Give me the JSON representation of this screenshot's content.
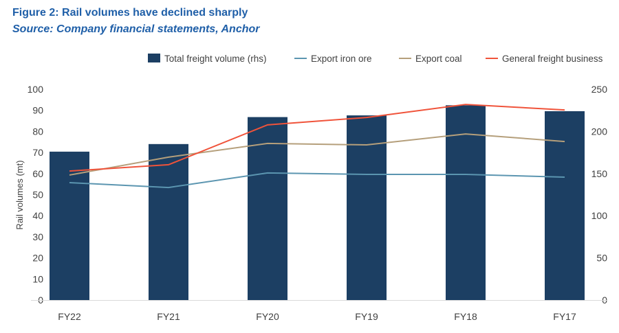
{
  "chart_data": {
    "type": "bar+line",
    "title": "Figure 2: Rail volumes have declined sharply",
    "subtitle": "Source: Company financial statements, Anchor",
    "categories": [
      "FY22",
      "FY21",
      "FY20",
      "FY19",
      "FY18",
      "FY17"
    ],
    "ylabel": "Rail volumes (mt)",
    "ylim": [
      0,
      100
    ],
    "yticks": [
      0,
      10,
      20,
      30,
      40,
      50,
      60,
      70,
      80,
      90,
      100
    ],
    "y2lim": [
      0,
      250
    ],
    "y2ticks": [
      0,
      50,
      100,
      150,
      200,
      250
    ],
    "grid": false,
    "legend": "top",
    "series": [
      {
        "name": "Total freight volume (rhs)",
        "type": "bar",
        "axis": "right",
        "color": "#1c3f63",
        "values": [
          176,
          185,
          217,
          219,
          231,
          224
        ]
      },
      {
        "name": "Export iron ore",
        "type": "line",
        "axis": "left",
        "color": "#5b95b0",
        "values": [
          55.7,
          53.4,
          60.3,
          59.6,
          59.6,
          58.3
        ]
      },
      {
        "name": "Export coal",
        "type": "line",
        "axis": "left",
        "color": "#b59f7b",
        "values": [
          59.3,
          67.8,
          74.3,
          73.6,
          78.8,
          75.2
        ]
      },
      {
        "name": "General freight business",
        "type": "line",
        "axis": "left",
        "color": "#f0533a",
        "values": [
          61.2,
          64.2,
          83.1,
          86.6,
          92.8,
          90.2
        ]
      }
    ]
  }
}
